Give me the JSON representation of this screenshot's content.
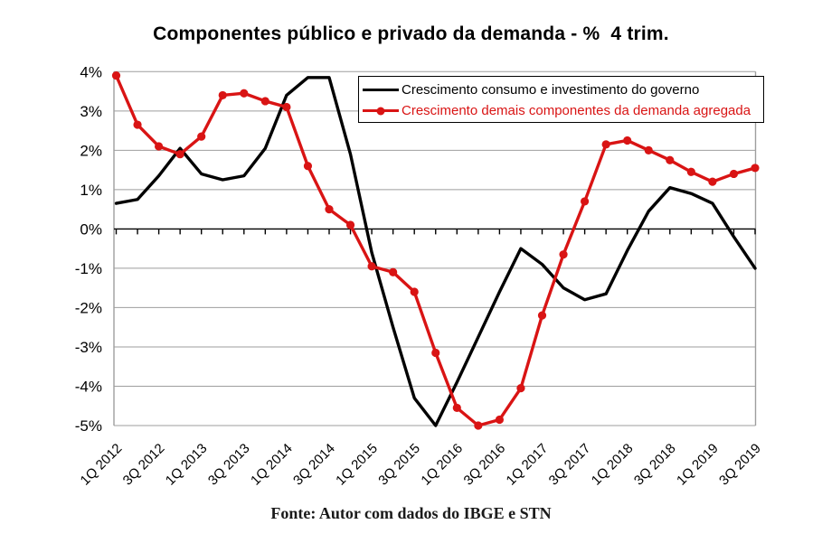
{
  "title": "Componentes público e privado da demanda - %  4 trim.",
  "footer": "Fonte: Autor com dados do IBGE e STN",
  "colors": {
    "series_governo": "#000000",
    "series_demanda": "#d91414",
    "gridline": "#9e9e9e",
    "zero_axis": "#000000",
    "background": "#ffffff"
  },
  "chart_data": {
    "type": "line",
    "title": "Componentes público e privado da demanda - %  4 trim.",
    "xlabel": "",
    "ylabel": "",
    "ylim": [
      -5,
      4
    ],
    "y_tick_step": 1,
    "y_tick_labels": [
      "4%",
      "3%",
      "2%",
      "1%",
      "0%",
      "-1%",
      "-2%",
      "-3%",
      "-4%",
      "-5%"
    ],
    "grid": true,
    "legend_position": "top-right",
    "categories": [
      "1Q 2012",
      "2Q 2012",
      "3Q 2012",
      "4Q 2012",
      "1Q 2013",
      "2Q 2013",
      "3Q 2013",
      "4Q 2013",
      "1Q 2014",
      "2Q 2014",
      "3Q 2014",
      "4Q 2014",
      "1Q 2015",
      "2Q 2015",
      "3Q 2015",
      "4Q 2015",
      "1Q 2016",
      "2Q 2016",
      "3Q 2016",
      "4Q 2016",
      "1Q 2017",
      "2Q 2017",
      "3Q 2017",
      "4Q 2017",
      "1Q 2018",
      "2Q 2018",
      "3Q 2018",
      "4Q 2018",
      "1Q 2019",
      "2Q 2019",
      "3Q 2019"
    ],
    "x_tick_labels_shown": [
      "1Q 2012",
      "3Q 2012",
      "1Q 2013",
      "3Q 2013",
      "1Q 2014",
      "3Q 2014",
      "1Q 2015",
      "3Q 2015",
      "1Q 2016",
      "3Q 2016",
      "1Q 2017",
      "3Q 2017",
      "1Q 2018",
      "3Q 2018",
      "1Q 2019",
      "3Q 2019"
    ],
    "series": [
      {
        "name": "Crescimento consumo e investimento do governo",
        "color": "#000000",
        "marker": "none",
        "values": [
          0.65,
          0.75,
          1.35,
          2.05,
          1.4,
          1.25,
          1.35,
          2.05,
          3.4,
          3.85,
          3.85,
          1.9,
          -0.6,
          -2.5,
          -4.3,
          -5.0,
          -3.9,
          -2.75,
          -1.6,
          -0.5,
          -0.9,
          -1.5,
          -1.8,
          -1.65,
          -0.55,
          0.45,
          1.05,
          0.9,
          0.65,
          -0.2,
          -1.0
        ]
      },
      {
        "name": "Crescimento demais componentes da demanda agregada",
        "color": "#d91414",
        "marker": "circle",
        "values": [
          3.9,
          2.65,
          2.1,
          1.9,
          2.35,
          3.4,
          3.45,
          3.25,
          3.1,
          1.6,
          0.5,
          0.1,
          -0.95,
          -1.1,
          -1.6,
          -3.15,
          -4.55,
          -5.0,
          -4.85,
          -4.05,
          -2.2,
          -0.65,
          0.7,
          2.15,
          2.25,
          2.0,
          1.75,
          1.45,
          1.2,
          1.4,
          1.55
        ]
      }
    ]
  }
}
